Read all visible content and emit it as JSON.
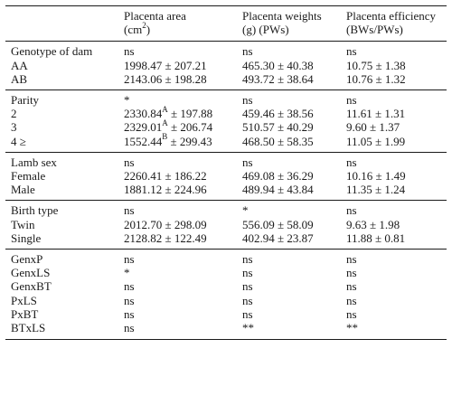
{
  "header": {
    "col1": "",
    "col2_line1": "Placenta area",
    "col2_line2_pre": "(cm",
    "col2_line2_sup": "2",
    "col2_line2_post": ")",
    "col3_line1": "Placenta weights",
    "col3_line2": "(g) (PWs)",
    "col4_line1": "Placenta efficiency",
    "col4_line2": "(BWs/PWs)"
  },
  "rows": {
    "genotype_label": "Genotype of dam",
    "genotype_area": "ns",
    "genotype_weight": "ns",
    "genotype_eff": "ns",
    "aa_label": "AA",
    "aa_area": "1998.47 ± 207.21",
    "aa_weight": "465.30 ± 40.38",
    "aa_eff": "10.75 ± 1.38",
    "ab_label": "AB",
    "ab_area": "2143.06 ± 198.28",
    "ab_weight": "493.72 ± 38.64",
    "ab_eff": "10.76 ± 1.32",
    "parity_label": "Parity",
    "parity_area": "*",
    "parity_weight": "ns",
    "parity_eff": "ns",
    "p2_label": "2",
    "p2_area_val": "2330.84",
    "p2_area_sup": "A",
    "p2_area_sd": " ± 197.88",
    "p2_weight": "459.46 ± 38.56",
    "p2_eff": "11.61 ± 1.31",
    "p3_label": "3",
    "p3_area_val": "2329.01",
    "p3_area_sup": "A",
    "p3_area_sd": " ± 206.74",
    "p3_weight": "510.57 ± 40.29",
    "p3_eff": "9.60 ± 1.37",
    "p4_label": "4 ≥",
    "p4_area_val": "1552.44",
    "p4_area_sup": "B",
    "p4_area_sd": " ± 299.43",
    "p4_weight": "468.50 ± 58.35",
    "p4_eff": "11.05 ± 1.99",
    "sex_label": "Lamb sex",
    "sex_area": "ns",
    "sex_weight": "ns",
    "sex_eff": "ns",
    "female_label": "Female",
    "female_area": "2260.41 ± 186.22",
    "female_weight": "469.08 ± 36.29",
    "female_eff": "10.16 ± 1.49",
    "male_label": "Male",
    "male_area": "1881.12 ± 224.96",
    "male_weight": "489.94 ± 43.84",
    "male_eff": "11.35 ± 1.24",
    "birth_label": "Birth type",
    "birth_area": "ns",
    "birth_weight": "*",
    "birth_eff": "ns",
    "twin_label": "Twin",
    "twin_area": "2012.70 ± 298.09",
    "twin_weight": "556.09 ± 58.09",
    "twin_eff": "9.63 ± 1.98",
    "single_label": "Single",
    "single_area": "2128.82 ± 122.49",
    "single_weight": "402.94 ± 23.87",
    "single_eff": "11.88 ± 0.81",
    "genxp_label": "GenxP",
    "genxp_area": "ns",
    "genxp_weight": "ns",
    "genxp_eff": "ns",
    "genxls_label": "GenxLS",
    "genxls_area": "*",
    "genxls_weight": "ns",
    "genxls_eff": "ns",
    "genxbt_label": "GenxBT",
    "genxbt_area": "ns",
    "genxbt_weight": "ns",
    "genxbt_eff": "ns",
    "pxls_label": "PxLS",
    "pxls_area": "ns",
    "pxls_weight": "ns",
    "pxls_eff": "ns",
    "pxbt_label": "PxBT",
    "pxbt_area": "ns",
    "pxbt_weight": "ns",
    "pxbt_eff": "ns",
    "btxls_label": "BTxLS",
    "btxls_area": "ns",
    "btxls_weight": "**",
    "btxls_eff": "**"
  }
}
